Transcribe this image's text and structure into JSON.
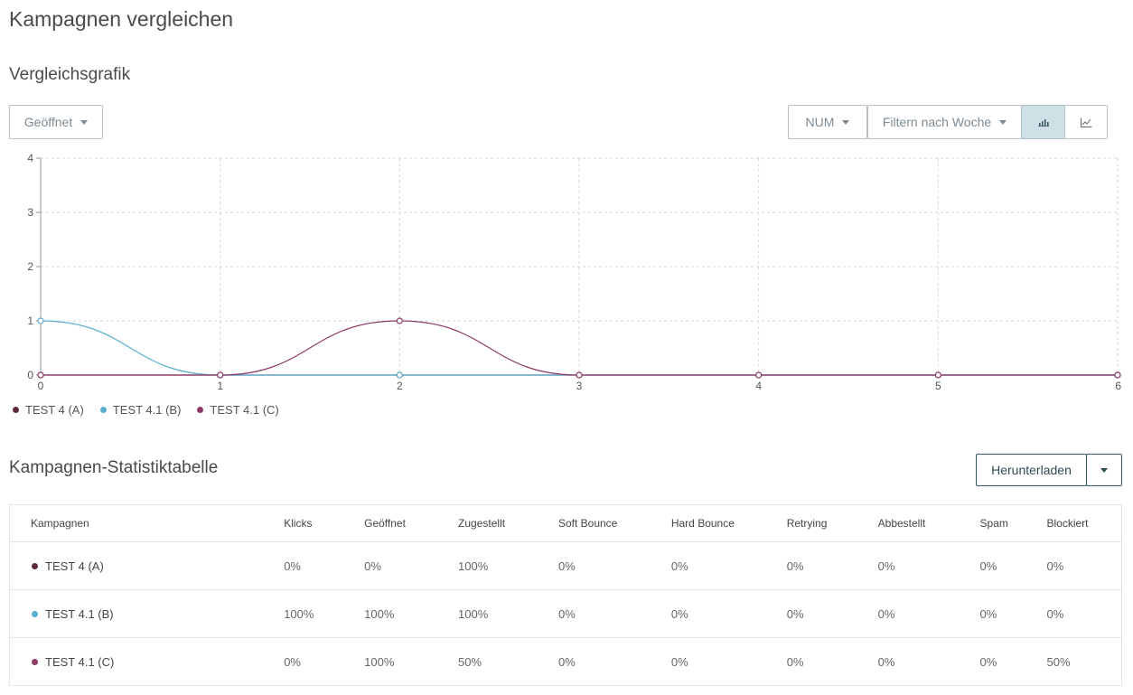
{
  "page_title": "Kampagnen vergleichen",
  "chart_section": {
    "title": "Vergleichsgrafik",
    "metric_dropdown": "Geöffnet",
    "mode_dropdown": "NUM",
    "week_filter": "Filtern nach Woche",
    "view_toggle": [
      {
        "icon": "bar-chart-icon",
        "active": true
      },
      {
        "icon": "line-chart-icon",
        "active": false
      }
    ]
  },
  "chart_data": {
    "type": "line",
    "x": [
      0,
      1,
      2,
      3,
      4,
      5,
      6
    ],
    "xlim": [
      0,
      6
    ],
    "ylim": [
      0,
      4
    ],
    "yticks": [
      0,
      1,
      2,
      3,
      4
    ],
    "grid": true,
    "legend_position": "bottom-left",
    "series": [
      {
        "name": "TEST 4 (A)",
        "color": "#5c2a3e",
        "values": [
          0,
          0,
          0,
          0,
          0,
          0,
          0
        ]
      },
      {
        "name": "TEST 4.1 (B)",
        "color": "#5aaed0",
        "values": [
          1,
          0,
          0,
          0,
          0,
          0,
          0
        ]
      },
      {
        "name": "TEST 4.1 (C)",
        "color": "#8e3a66",
        "values": [
          0,
          0,
          1,
          0,
          0,
          0,
          0
        ]
      }
    ]
  },
  "table_section": {
    "title": "Kampagnen-Statistiktabelle",
    "download_label": "Herunterladen",
    "columns": [
      "Kampagnen",
      "Klicks",
      "Geöffnet",
      "Zugestellt",
      "Soft Bounce",
      "Hard Bounce",
      "Retrying",
      "Abbestellt",
      "Spam",
      "Blockiert"
    ],
    "rows": [
      {
        "campaign": "TEST 4 (A)",
        "color": "#5c2a3e",
        "values": [
          "0%",
          "0%",
          "100%",
          "0%",
          "0%",
          "0%",
          "0%",
          "0%",
          "0%"
        ]
      },
      {
        "campaign": "TEST 4.1 (B)",
        "color": "#5aaed0",
        "values": [
          "100%",
          "100%",
          "100%",
          "0%",
          "0%",
          "0%",
          "0%",
          "0%",
          "0%"
        ]
      },
      {
        "campaign": "TEST 4.1 (C)",
        "color": "#8e3a66",
        "values": [
          "0%",
          "100%",
          "50%",
          "0%",
          "0%",
          "0%",
          "0%",
          "0%",
          "50%"
        ]
      }
    ]
  }
}
